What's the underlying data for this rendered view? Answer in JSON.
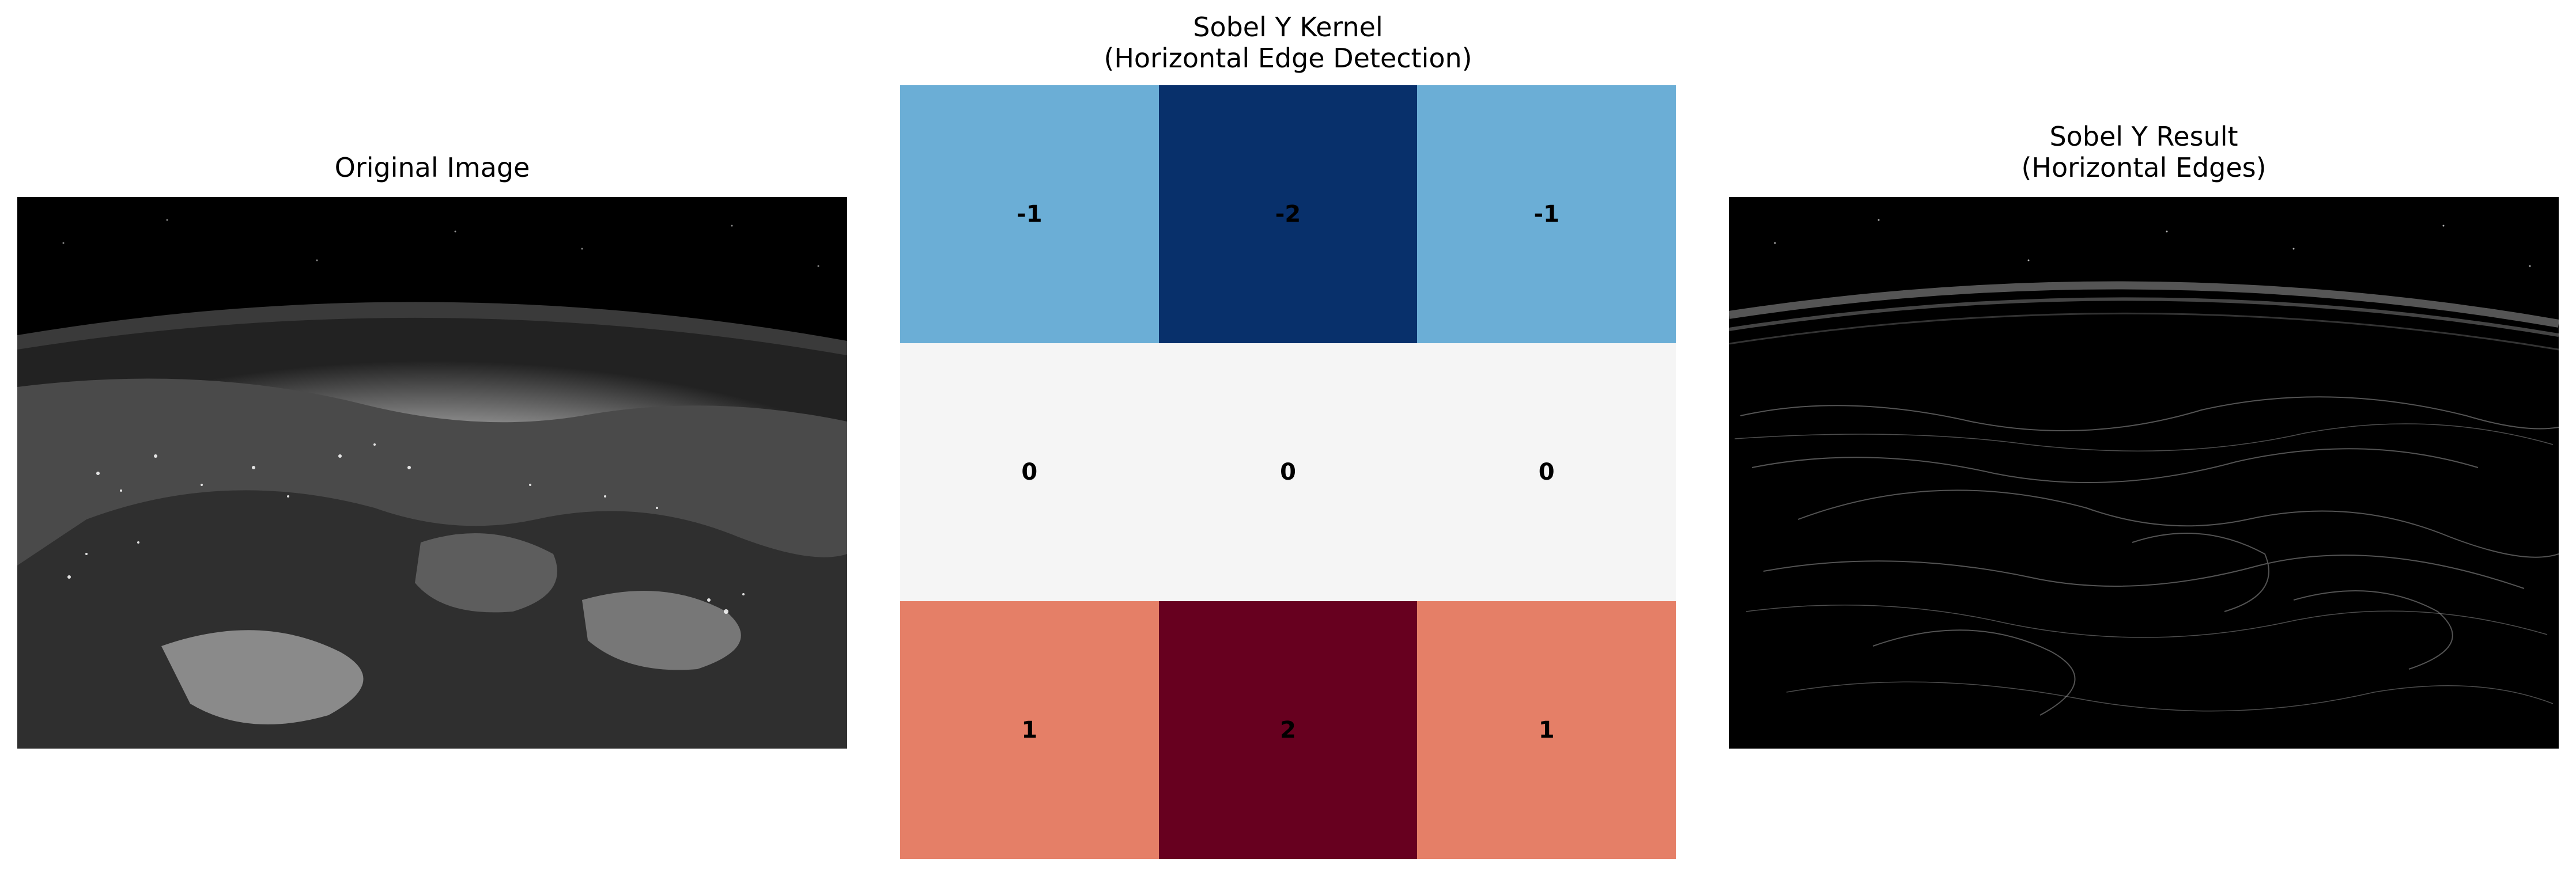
{
  "panels": {
    "original": {
      "title": "Original Image",
      "image_description_icon": "earth-night-grayscale-image"
    },
    "kernel": {
      "title": "Sobel Y Kernel\n(Horizontal Edge Detection)",
      "colormap": "RdBu_r",
      "rows": [
        [
          {
            "value": "-1",
            "color": "#6baed6"
          },
          {
            "value": "-2",
            "color": "#08306b"
          },
          {
            "value": "-1",
            "color": "#6baed6"
          }
        ],
        [
          {
            "value": "0",
            "color": "#f5f5f5"
          },
          {
            "value": "0",
            "color": "#f5f5f5"
          },
          {
            "value": "0",
            "color": "#f5f5f5"
          }
        ],
        [
          {
            "value": "1",
            "color": "#e57f67"
          },
          {
            "value": "2",
            "color": "#67001f"
          },
          {
            "value": "1",
            "color": "#e57f67"
          }
        ]
      ]
    },
    "result": {
      "title": "Sobel Y Result\n(Horizontal Edges)",
      "image_description_icon": "edge-map-image"
    }
  }
}
